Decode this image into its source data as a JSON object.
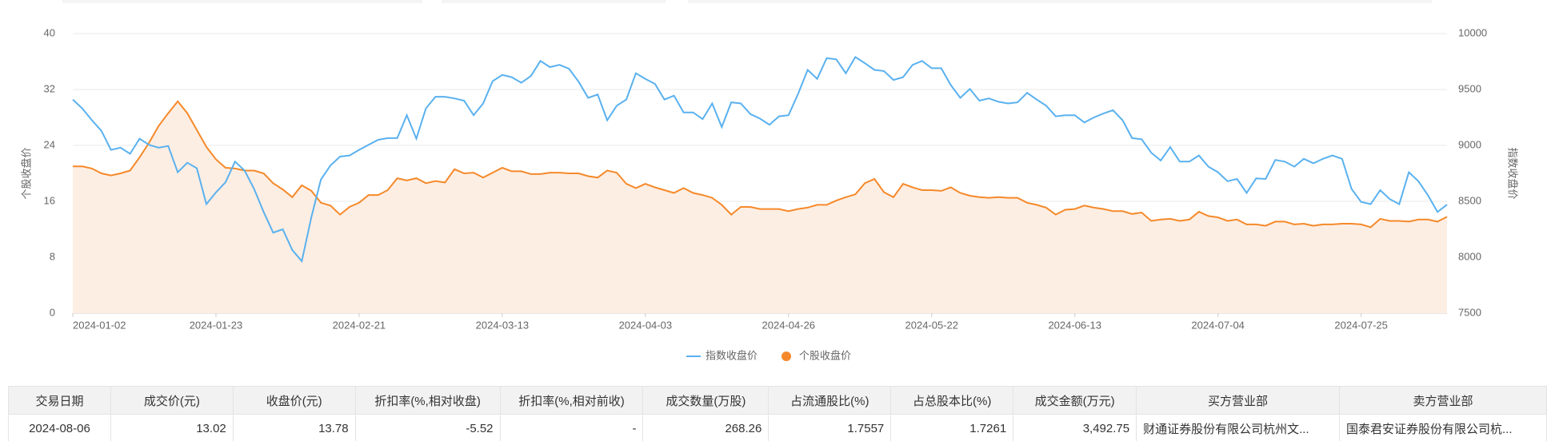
{
  "chart_data": {
    "type": "line",
    "y_label": "个股收盘价",
    "y2_label": "指数收盘价",
    "categories": [
      "2024-01-02",
      null,
      null,
      null,
      null,
      null,
      null,
      null,
      null,
      null,
      null,
      null,
      null,
      null,
      null,
      "2024-01-23",
      null,
      null,
      null,
      null,
      null,
      null,
      null,
      null,
      null,
      null,
      null,
      null,
      null,
      null,
      "2024-02-21",
      null,
      null,
      null,
      null,
      null,
      null,
      null,
      null,
      null,
      null,
      null,
      null,
      null,
      null,
      "2024-03-13",
      null,
      null,
      null,
      null,
      null,
      null,
      null,
      null,
      null,
      null,
      null,
      null,
      null,
      null,
      "2024-04-03",
      null,
      null,
      null,
      null,
      null,
      null,
      null,
      null,
      null,
      null,
      null,
      null,
      null,
      null,
      "2024-04-26",
      null,
      null,
      null,
      null,
      null,
      null,
      null,
      null,
      null,
      null,
      null,
      null,
      null,
      null,
      "2024-05-22",
      null,
      null,
      null,
      null,
      null,
      null,
      null,
      null,
      null,
      null,
      null,
      null,
      null,
      null,
      "2024-06-13",
      null,
      null,
      null,
      null,
      null,
      null,
      null,
      null,
      null,
      null,
      null,
      null,
      null,
      null,
      "2024-07-04",
      null,
      null,
      null,
      null,
      null,
      null,
      null,
      null,
      null,
      null,
      null,
      null,
      null,
      null,
      "2024-07-25",
      null,
      null,
      null,
      null,
      null,
      null,
      null,
      null,
      null
    ],
    "series": [
      {
        "name": "指数收盘价",
        "color": "#5ab1ef",
        "axis": "y2",
        "values": [
          9410,
          9330,
          9225,
          9130,
          8960,
          8980,
          8925,
          9060,
          9005,
          8980,
          8995,
          8760,
          8845,
          8795,
          8475,
          8580,
          8670,
          8855,
          8775,
          8610,
          8405,
          8220,
          8250,
          8065,
          7965,
          8360,
          8695,
          8820,
          8900,
          8910,
          8960,
          9005,
          9050,
          9065,
          9065,
          9270,
          9060,
          9330,
          9435,
          9435,
          9420,
          9400,
          9270,
          9375,
          9575,
          9630,
          9610,
          9560,
          9620,
          9755,
          9700,
          9720,
          9685,
          9570,
          9425,
          9455,
          9225,
          9355,
          9410,
          9645,
          9595,
          9550,
          9410,
          9445,
          9295,
          9295,
          9235,
          9375,
          9165,
          9385,
          9375,
          9280,
          9240,
          9185,
          9260,
          9270,
          9460,
          9675,
          9595,
          9780,
          9770,
          9645,
          9790,
          9735,
          9675,
          9665,
          9585,
          9610,
          9720,
          9755,
          9690,
          9690,
          9540,
          9425,
          9505,
          9400,
          9420,
          9390,
          9375,
          9385,
          9470,
          9410,
          9355,
          9260,
          9270,
          9270,
          9205,
          9250,
          9285,
          9315,
          9225,
          9065,
          9055,
          8935,
          8865,
          8985,
          8855,
          8855,
          8910,
          8810,
          8760,
          8680,
          8700,
          8575,
          8705,
          8700,
          8870,
          8855,
          8810,
          8880,
          8840,
          8880,
          8910,
          8880,
          8610,
          8495,
          8475,
          8600,
          8520,
          8475,
          8760,
          8680,
          8555,
          8405,
          8470
        ]
      },
      {
        "name": "个股收盘价",
        "color": "#f5892a",
        "area_color": "#fdeee3",
        "values": [
          21.0,
          21.0,
          20.7,
          20.0,
          19.7,
          20.0,
          20.4,
          22.3,
          24.4,
          26.8,
          28.6,
          30.3,
          28.6,
          26.2,
          23.8,
          22.0,
          20.8,
          20.7,
          20.4,
          20.4,
          20.0,
          18.6,
          17.7,
          16.6,
          18.3,
          17.5,
          15.8,
          15.4,
          14.1,
          15.2,
          15.8,
          16.9,
          16.9,
          17.6,
          19.3,
          19.0,
          19.3,
          18.6,
          18.9,
          18.7,
          20.6,
          20.0,
          20.1,
          19.4,
          20.1,
          20.8,
          20.3,
          20.3,
          19.9,
          19.9,
          20.1,
          20.1,
          20.0,
          20.0,
          19.6,
          19.4,
          20.4,
          20.1,
          18.5,
          17.9,
          18.5,
          18.0,
          17.6,
          17.2,
          17.9,
          17.2,
          16.9,
          16.5,
          15.5,
          14.1,
          15.2,
          15.2,
          14.9,
          14.9,
          14.9,
          14.6,
          14.9,
          15.1,
          15.5,
          15.5,
          16.1,
          16.6,
          17.0,
          18.6,
          19.2,
          17.3,
          16.6,
          18.5,
          18.0,
          17.6,
          17.6,
          17.5,
          18.0,
          17.2,
          16.8,
          16.6,
          16.5,
          16.6,
          16.5,
          16.5,
          15.8,
          15.5,
          15.1,
          14.1,
          14.8,
          14.9,
          15.4,
          15.1,
          14.9,
          14.6,
          14.6,
          14.2,
          14.4,
          13.2,
          13.4,
          13.5,
          13.2,
          13.4,
          14.5,
          13.9,
          13.7,
          13.2,
          13.4,
          12.7,
          12.7,
          12.5,
          13.1,
          13.1,
          12.7,
          12.8,
          12.5,
          12.7,
          12.7,
          12.8,
          12.8,
          12.7,
          12.3,
          13.5,
          13.2,
          13.2,
          13.1,
          13.4,
          13.4,
          13.1,
          13.78
        ]
      }
    ],
    "ylim": [
      0,
      40
    ],
    "yticks": [
      0,
      8,
      16,
      24,
      32,
      40
    ],
    "y2lim": [
      7500,
      10000
    ],
    "y2ticks": [
      7500,
      8000,
      8500,
      9000,
      9500,
      10000
    ],
    "grid": true,
    "legend": "bottom"
  },
  "table": {
    "header": [
      "交易日期",
      "成交价(元)",
      "收盘价(元)",
      "折扣率(%,相对收盘)",
      "折扣率(%,相对前收)",
      "成交数量(万股)",
      "占流通股比(%)",
      "占总股本比(%)",
      "成交金额(万元)",
      "买方营业部",
      "卖方营业部"
    ],
    "rows": [
      [
        "2024-08-06",
        "13.02",
        "13.78",
        "-5.52",
        "-",
        "268.26",
        "1.7557",
        "1.7261",
        "3,492.75",
        "财通证券股份有限公司杭州文...",
        "国泰君安证券股份有限公司杭..."
      ]
    ]
  }
}
